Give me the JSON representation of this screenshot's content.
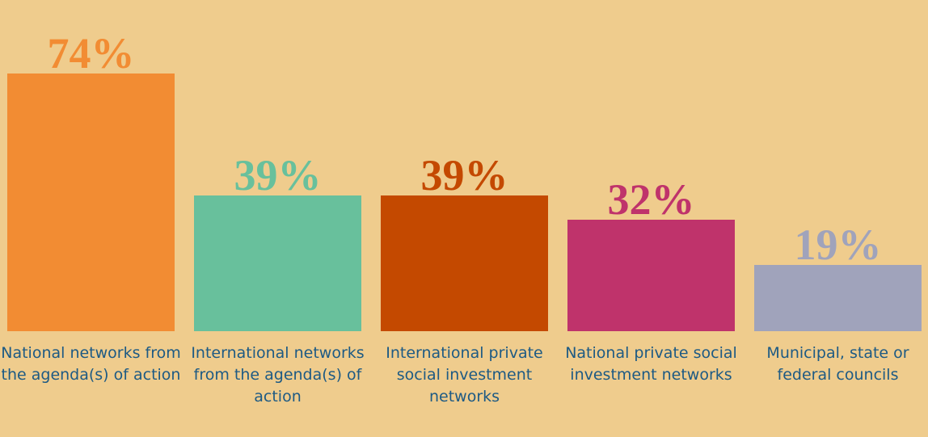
{
  "chart_data": {
    "type": "bar",
    "categories": [
      "National networks from the agenda(s) of action",
      "International networks from the agenda(s) of action",
      "International private social investment networks",
      "National private social investment networks",
      "Municipal, state or federal councils"
    ],
    "values": [
      74,
      39,
      39,
      32,
      19
    ],
    "value_labels": [
      "74%",
      "39%",
      "39%",
      "32%",
      "19%"
    ],
    "colors": [
      "#f28c33",
      "#68c09c",
      "#c44900",
      "#bf336b",
      "#a0a3bb"
    ],
    "ylim": [
      0,
      95
    ]
  }
}
